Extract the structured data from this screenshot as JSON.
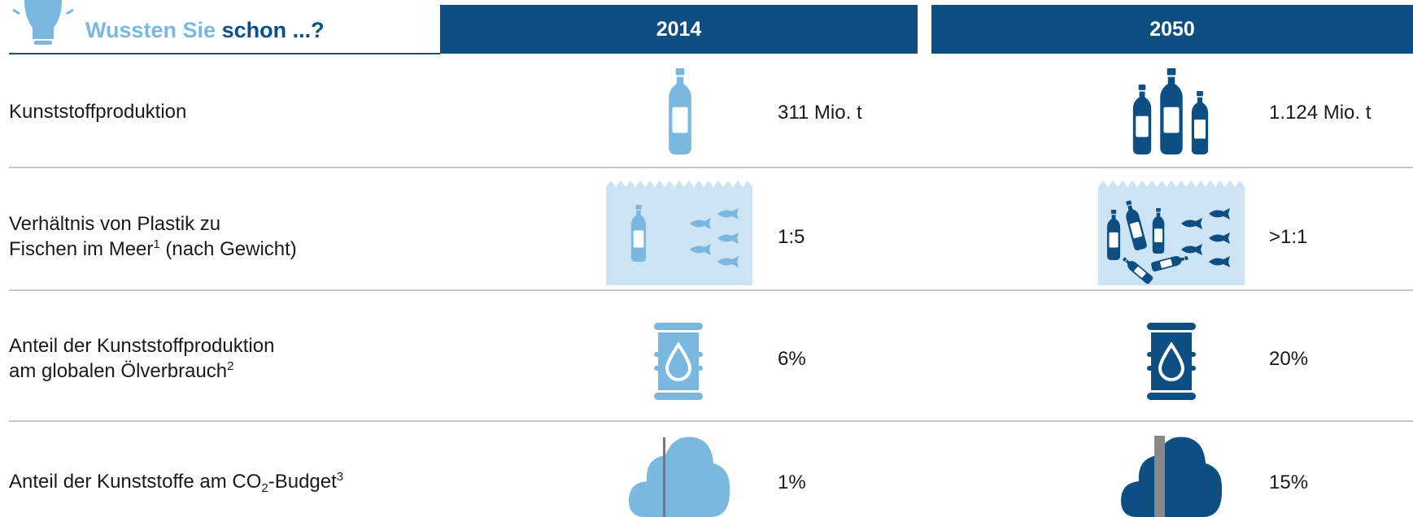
{
  "header": {
    "title_highlight": "Wussten Sie",
    "title_rest": "schon ...?",
    "columns": [
      "2014",
      "2050"
    ]
  },
  "rows": [
    {
      "label": [
        "Kunststoffproduktion"
      ],
      "values": [
        "311 Mio. t",
        "1.124 Mio. t"
      ]
    },
    {
      "label": [
        "Verhältnis von Plastik zu",
        "Fischen im Meer",
        "1",
        " (nach Gewicht)"
      ],
      "values": [
        "1:5",
        ">1:1"
      ]
    },
    {
      "label": [
        "Anteil der Kunststoffproduktion",
        "am globalen Ölverbrauch",
        "2"
      ],
      "values": [
        "6%",
        "20%"
      ]
    },
    {
      "label": [
        "Anteil der Kunststoffe am CO",
        "2",
        "-Budget",
        "3"
      ],
      "values": [
        "1%",
        "15%"
      ]
    }
  ]
}
